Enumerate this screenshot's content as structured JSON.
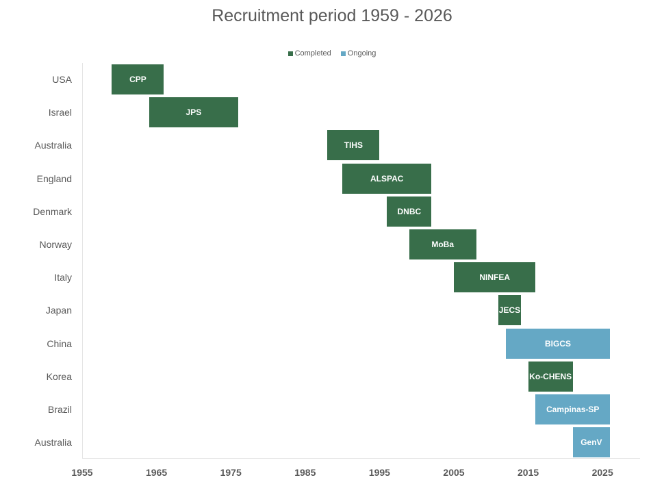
{
  "colors": {
    "completed": "#386e4a",
    "ongoing": "#65a8c5"
  },
  "chart_data": {
    "type": "bar",
    "subtype": "gantt",
    "title": "Recruitment period 1959 - 2026",
    "xlabel": "",
    "ylabel": "",
    "xlim": [
      1955,
      2030
    ],
    "xticks": [
      1955,
      1965,
      1975,
      1985,
      1995,
      2005,
      2015,
      2025
    ],
    "legend": [
      "Completed",
      "Ongoing"
    ],
    "legend_position": "top",
    "grid": false,
    "rows": [
      {
        "country": "USA",
        "study": "CPP",
        "start": 1959,
        "end": 1966,
        "status": "Completed"
      },
      {
        "country": "Israel",
        "study": "JPS",
        "start": 1964,
        "end": 1976,
        "status": "Completed"
      },
      {
        "country": "Australia",
        "study": "TIHS",
        "start": 1988,
        "end": 1995,
        "status": "Completed"
      },
      {
        "country": "England",
        "study": "ALSPAC",
        "start": 1990,
        "end": 2002,
        "status": "Completed"
      },
      {
        "country": "Denmark",
        "study": "DNBC",
        "start": 1996,
        "end": 2002,
        "status": "Completed"
      },
      {
        "country": "Norway",
        "study": "MoBa",
        "start": 1999,
        "end": 2008,
        "status": "Completed"
      },
      {
        "country": "Italy",
        "study": "NINFEA",
        "start": 2005,
        "end": 2016,
        "status": "Completed"
      },
      {
        "country": "Japan",
        "study": "JECS",
        "start": 2011,
        "end": 2014,
        "status": "Completed"
      },
      {
        "country": "China",
        "study": "BIGCS",
        "start": 2012,
        "end": 2026,
        "status": "Ongoing"
      },
      {
        "country": "Korea",
        "study": "Ko-CHENS",
        "start": 2015,
        "end": 2021,
        "status": "Completed"
      },
      {
        "country": "Brazil",
        "study": "Campinas-SP",
        "start": 2016,
        "end": 2026,
        "status": "Ongoing"
      },
      {
        "country": "Australia",
        "study": "GenV",
        "start": 2021,
        "end": 2026,
        "status": "Ongoing"
      }
    ]
  }
}
